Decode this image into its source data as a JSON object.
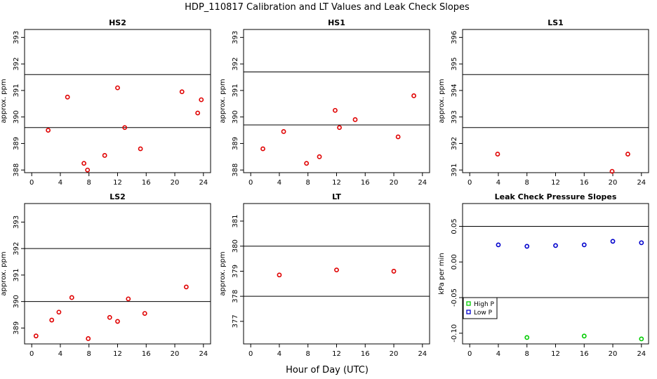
{
  "figure": {
    "title": "HDP_110817  Calibration and LT Values and Leak Check Slopes",
    "xlabel": "Hour of Day (UTC)"
  },
  "chart_data": [
    {
      "id": "hs2",
      "type": "scatter",
      "title": "HS2",
      "ylabel": "approx. ppm",
      "xlim": [
        -1,
        25
      ],
      "xticks": [
        0,
        4,
        8,
        12,
        16,
        20,
        24
      ],
      "ylim": [
        387.9,
        393.3
      ],
      "yticks": [
        388,
        389,
        390,
        391,
        392,
        393
      ],
      "hlines": [
        389.6,
        391.6
      ],
      "series": [
        {
          "color": "#e00000",
          "marker": "circle",
          "x": [
            2.3,
            5.0,
            7.3,
            7.8,
            10.2,
            12.0,
            13.0,
            15.2,
            21.0,
            23.2,
            23.7
          ],
          "y": [
            389.5,
            390.75,
            388.25,
            388.0,
            388.55,
            391.1,
            389.6,
            388.8,
            390.95,
            390.15,
            390.65
          ]
        }
      ]
    },
    {
      "id": "hs1",
      "type": "scatter",
      "title": "HS1",
      "ylabel": "approx. ppm",
      "xlim": [
        -1,
        25
      ],
      "xticks": [
        0,
        4,
        8,
        12,
        16,
        20,
        24
      ],
      "ylim": [
        387.9,
        393.3
      ],
      "yticks": [
        388,
        389,
        390,
        391,
        392,
        393
      ],
      "hlines": [
        389.7,
        391.7
      ],
      "series": [
        {
          "color": "#e00000",
          "marker": "circle",
          "x": [
            1.7,
            4.6,
            7.8,
            9.6,
            11.8,
            12.4,
            14.6,
            20.6,
            22.8
          ],
          "y": [
            388.8,
            389.45,
            388.25,
            388.5,
            390.25,
            389.6,
            389.9,
            389.25,
            390.8
          ]
        }
      ]
    },
    {
      "id": "ls1",
      "type": "scatter",
      "title": "LS1",
      "ylabel": "approx. ppm",
      "xlim": [
        -1,
        25
      ],
      "xticks": [
        0,
        4,
        8,
        12,
        16,
        20,
        24
      ],
      "ylim": [
        390.9,
        396.3
      ],
      "yticks": [
        391,
        392,
        393,
        394,
        395,
        396
      ],
      "hlines": [
        392.6,
        394.6
      ],
      "series": [
        {
          "color": "#e00000",
          "marker": "circle",
          "x": [
            3.9,
            19.9,
            22.1
          ],
          "y": [
            391.6,
            390.95,
            391.6
          ]
        }
      ]
    },
    {
      "id": "ls2",
      "type": "scatter",
      "title": "LS2",
      "ylabel": "approx. ppm",
      "xlim": [
        -1,
        25
      ],
      "xticks": [
        0,
        4,
        8,
        12,
        16,
        20,
        24
      ],
      "ylim": [
        388.4,
        393.7
      ],
      "yticks": [
        389,
        390,
        391,
        392,
        393
      ],
      "hlines": [
        390.0,
        392.0
      ],
      "series": [
        {
          "color": "#e00000",
          "marker": "circle",
          "x": [
            0.6,
            2.8,
            3.8,
            5.6,
            7.9,
            10.9,
            12.0,
            13.5,
            15.8,
            21.6
          ],
          "y": [
            388.7,
            389.3,
            389.6,
            390.15,
            388.6,
            389.4,
            389.25,
            390.1,
            389.55,
            390.55
          ]
        }
      ]
    },
    {
      "id": "lt",
      "type": "scatter",
      "title": "LT",
      "ylabel": "approx. ppm",
      "xlim": [
        -1,
        25
      ],
      "xticks": [
        0,
        4,
        8,
        12,
        16,
        20,
        24
      ],
      "ylim": [
        376.1,
        381.7
      ],
      "yticks": [
        377,
        378,
        379,
        380,
        381
      ],
      "hlines": [
        378.0,
        380.0
      ],
      "series": [
        {
          "color": "#e00000",
          "marker": "circle",
          "x": [
            4.0,
            12.0,
            20.0
          ],
          "y": [
            378.85,
            379.05,
            379.0
          ]
        }
      ]
    },
    {
      "id": "leak",
      "type": "scatter",
      "title": "Leak Check Pressure Slopes",
      "ylabel": "kPa per min",
      "xlim": [
        -1,
        25
      ],
      "xticks": [
        0,
        4,
        8,
        12,
        16,
        20,
        24
      ],
      "ylim": [
        -0.115,
        0.082
      ],
      "yticks": [
        -0.1,
        -0.05,
        0.0,
        0.05
      ],
      "ytick_labels": [
        "-0.10",
        "-0.05",
        "0.00",
        "0.05"
      ],
      "hlines": [
        -0.05,
        0.05
      ],
      "legend": {
        "placement": "bottom-left"
      },
      "series": [
        {
          "name": "High P",
          "color": "#00cc00",
          "marker": "circle",
          "x": [
            8,
            16,
            24
          ],
          "y": [
            -0.106,
            -0.104,
            -0.108
          ]
        },
        {
          "name": "Low P",
          "color": "#0000cc",
          "marker": "circle",
          "x": [
            4,
            8,
            12,
            16,
            20,
            24
          ],
          "y": [
            0.024,
            0.022,
            0.023,
            0.024,
            0.029,
            0.027
          ]
        }
      ]
    }
  ]
}
